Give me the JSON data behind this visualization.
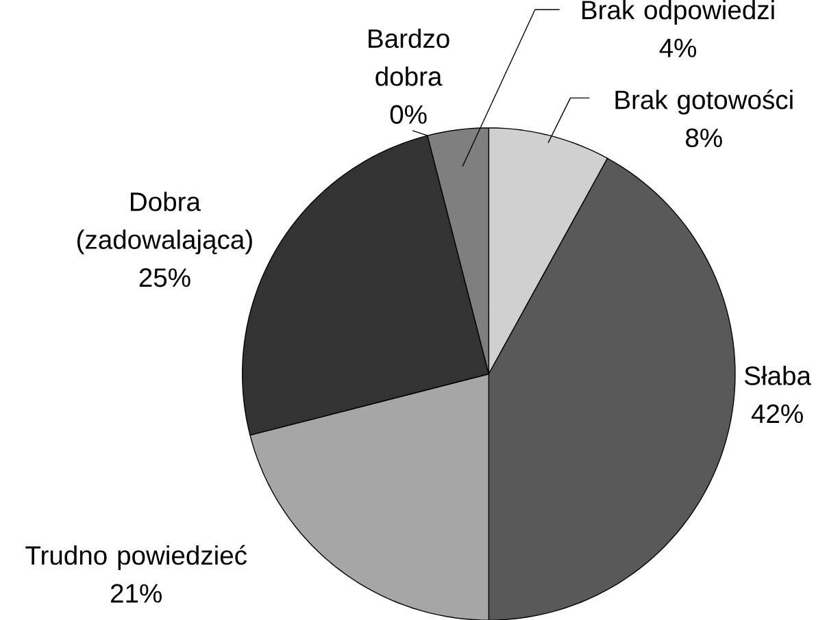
{
  "chart_data": {
    "type": "pie",
    "categories": [
      "Brak gotowości",
      "Słaba",
      "Trudno powiedzieć",
      "Dobra (zadowalająca)",
      "Bardzo dobra",
      "Brak odpowiedzi"
    ],
    "values": [
      8,
      42,
      21,
      25,
      0,
      4
    ],
    "value_labels": [
      "8%",
      "42%",
      "21%",
      "25%",
      "0%",
      "4%"
    ],
    "colors": [
      "#d0d0d0",
      "#595959",
      "#a6a6a6",
      "#333333",
      "#909090",
      "#7f7f7f"
    ]
  }
}
